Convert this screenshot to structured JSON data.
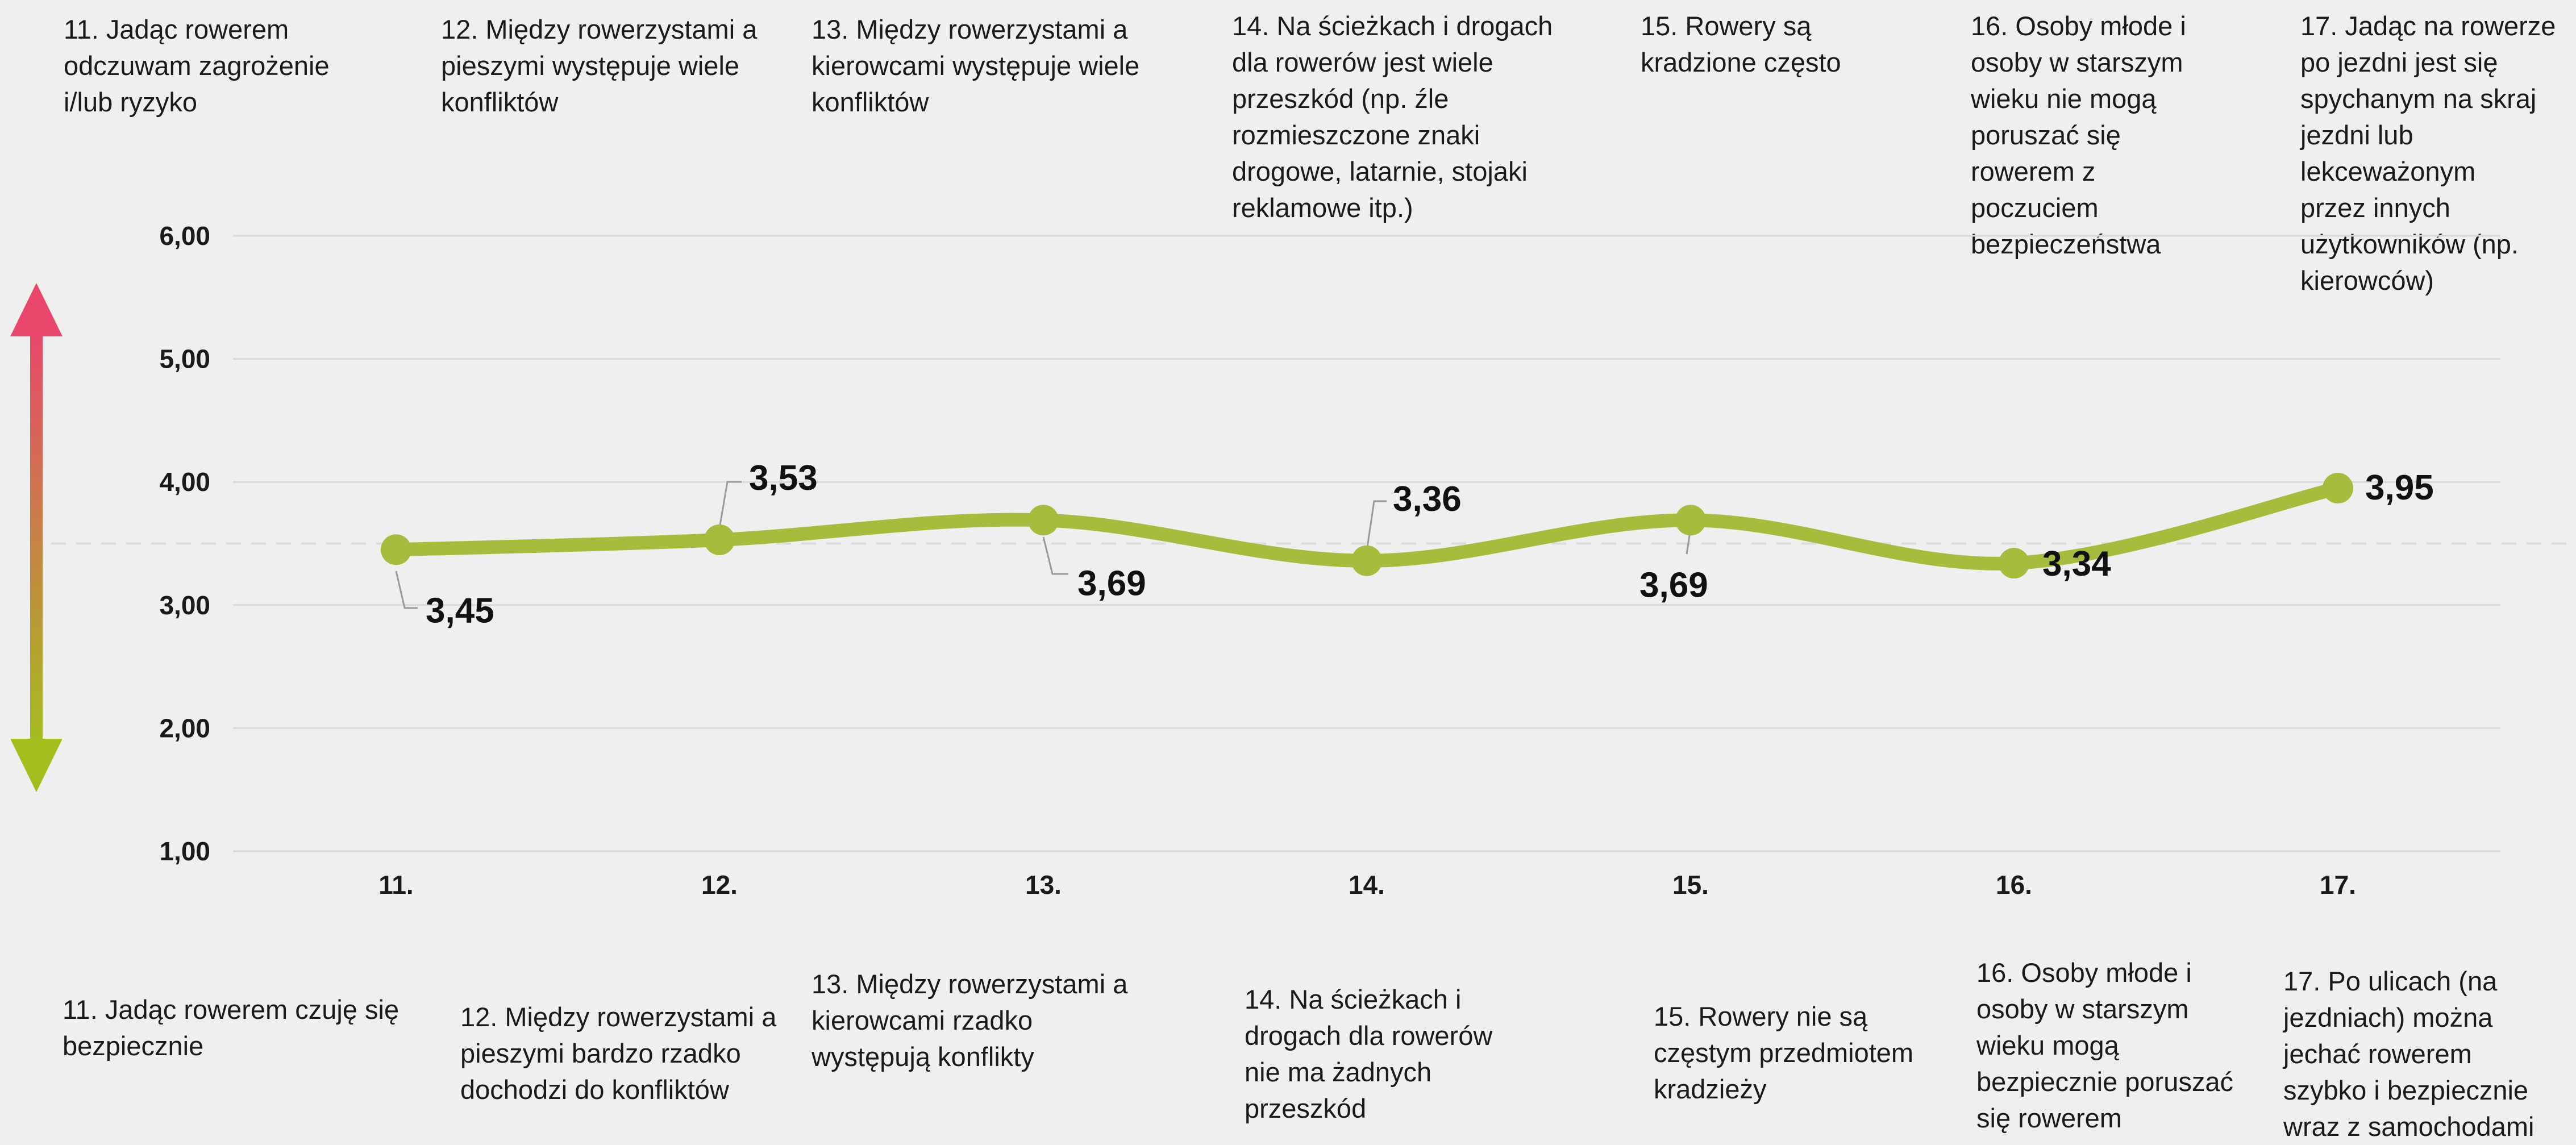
{
  "chart_data": {
    "type": "line",
    "categories": [
      "11.",
      "12.",
      "13.",
      "14.",
      "15.",
      "16.",
      "17."
    ],
    "values": [
      3.45,
      3.53,
      3.69,
      3.36,
      3.69,
      3.34,
      3.95
    ],
    "value_labels": [
      "3,45",
      "3,53",
      "3,69",
      "3,36",
      "3,69",
      "3,34",
      "3,95"
    ],
    "y_ticks": [
      "1,00",
      "2,00",
      "3,00",
      "4,00",
      "5,00",
      "6,00"
    ],
    "ylim": [
      1,
      6
    ],
    "midline": 3.5,
    "grid": true,
    "smooth": true,
    "line_color": "#a4bd3c",
    "grid_color": "#d9d9d9",
    "arrow_gradient": [
      "#e8476b",
      "#a4be1e"
    ],
    "top_labels": [
      "11. Jadąc rowerem\nodczuwam zagrożenie\ni/lub ryzyko",
      "12. Między rowerzystami a\npieszymi występuje wiele\nkonfliktów",
      "13. Między rowerzystami a\nkierowcami występuje wiele\nkonfliktów",
      "14. Na ścieżkach i drogach\ndla rowerów jest wiele\nprzeszkód (np. źle\nrozmieszczone znaki\ndrogowe, latarnie, stojaki\nreklamowe itp.)",
      "15. Rowery są\nkradzione często",
      "16. Osoby młode i\nosoby w starszym\nwieku nie mogą\nporuszać się\nrowerem z\npoczuciem\nbezpieczeństwa",
      "17. Jadąc na rowerze\npo jezdni jest się\nspychanym na skraj\njezdni lub\nlekceważonym\nprzez innych\nużytkowników (np.\nkierowców)"
    ],
    "bottom_labels": [
      "11. Jadąc rowerem czuję się\nbezpiecznie",
      "12. Między rowerzystami a\npieszymi bardzo rzadko\ndochodzi do konfliktów",
      "13. Między rowerzystami a\nkierowcami rzadko\nwystępują konflikty",
      "14. Na ścieżkach i\ndrogach dla rowerów\nnie ma żadnych\nprzeszkód",
      "15. Rowery nie są\nczęstym przedmiotem\nkradzieży",
      "16. Osoby młode i\nosoby w starszym\nwieku mogą\nbezpiecznie poruszać\nsię rowerem",
      "17. Po ulicach (na\njezdniach) można\njechać rowerem\nszybko i bezpiecznie\nwraz z samochodami"
    ]
  }
}
